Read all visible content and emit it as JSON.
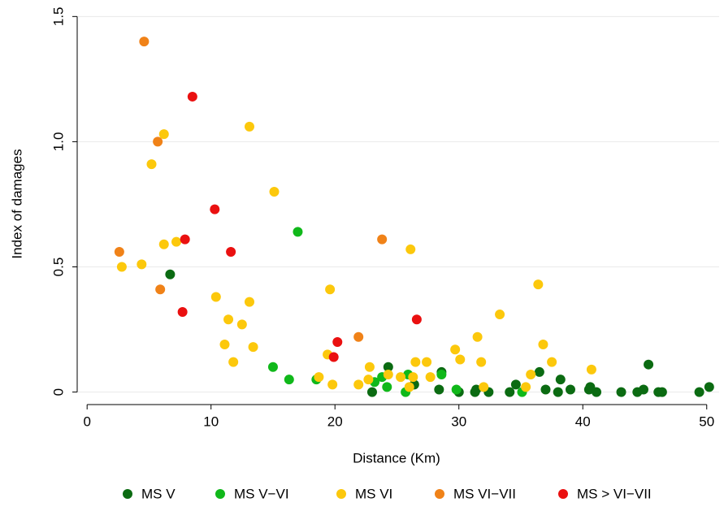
{
  "chart_data": {
    "type": "scatter",
    "x_label": "Distance (Km)",
    "y_label": "Index of damages",
    "xlim": [
      -0.8,
      51
    ],
    "ylim": [
      -0.05,
      1.54
    ],
    "xticks": [
      0,
      10,
      20,
      30,
      40,
      50
    ],
    "yticks": [
      0,
      0.5,
      {
        "value": 1,
        "label": "1.0"
      },
      1.5
    ],
    "grid": true,
    "legend": "bottom",
    "series": [
      {
        "name": "MS V",
        "color": "#0b6b12",
        "x": [
          6.7,
          24.3,
          28.6,
          36.5,
          45.3,
          23.0,
          26.4,
          28.4,
          30.0,
          31.3,
          31.4,
          32.4,
          34.1,
          34.6,
          37.0,
          38.0,
          38.2,
          39.0,
          40.5,
          40.6,
          41.1,
          43.1,
          44.4,
          44.9,
          46.1,
          46.4,
          49.4,
          50.2
        ],
        "values": [
          0.47,
          0.1,
          0.08,
          0.08,
          0.11,
          0.0,
          0.03,
          0.01,
          0.0,
          0.0,
          0.01,
          0.0,
          0.0,
          0.03,
          0.01,
          0.0,
          0.05,
          0.01,
          0.01,
          0.02,
          0.0,
          0.0,
          0.0,
          0.01,
          0.0,
          0.0,
          0.0,
          0.02
        ]
      },
      {
        "name": "MS V−VI",
        "color": "#10b81a",
        "x": [
          17.0,
          15.0,
          16.3,
          18.5,
          23.2,
          23.8,
          24.2,
          25.9,
          25.7,
          28.6,
          29.8,
          35.1
        ],
        "values": [
          0.64,
          0.1,
          0.05,
          0.05,
          0.04,
          0.06,
          0.02,
          0.07,
          0.0,
          0.07,
          0.01,
          0.0
        ]
      },
      {
        "name": "MS VI",
        "color": "#fcc80c",
        "x": [
          2.8,
          4.4,
          5.2,
          6.2,
          6.2,
          7.2,
          10.4,
          11.4,
          11.8,
          11.1,
          12.5,
          13.1,
          13.1,
          13.4,
          15.1,
          19.6,
          19.4,
          19.8,
          18.7,
          21.9,
          22.8,
          22.7,
          24.3,
          25.3,
          26.1,
          26.0,
          26.5,
          26.3,
          27.4,
          27.7,
          29.7,
          30.1,
          31.5,
          31.8,
          32.0,
          33.3,
          35.4,
          35.8,
          36.4,
          36.8,
          37.5,
          40.7
        ],
        "values": [
          0.5,
          0.51,
          0.91,
          1.03,
          0.59,
          0.6,
          0.38,
          0.29,
          0.12,
          0.19,
          0.27,
          1.06,
          0.36,
          0.18,
          0.8,
          0.41,
          0.15,
          0.03,
          0.06,
          0.03,
          0.1,
          0.05,
          0.07,
          0.06,
          0.57,
          0.02,
          0.12,
          0.06,
          0.12,
          0.06,
          0.17,
          0.13,
          0.22,
          0.12,
          0.02,
          0.31,
          0.02,
          0.07,
          0.43,
          0.19,
          0.12,
          0.09
        ]
      },
      {
        "name": "MS VI−VII",
        "color": "#f08218",
        "x": [
          2.6,
          4.6,
          5.7,
          5.9,
          21.9,
          23.8
        ],
        "values": [
          0.56,
          1.4,
          1.0,
          0.41,
          0.22,
          0.61
        ]
      },
      {
        "name": "MS > VI−VII",
        "color": "#ea1010",
        "x": [
          8.5,
          10.3,
          7.9,
          11.6,
          7.7,
          20.2,
          19.9,
          26.6
        ],
        "values": [
          1.18,
          0.73,
          0.61,
          0.56,
          0.32,
          0.2,
          0.14,
          0.29
        ]
      }
    ]
  }
}
